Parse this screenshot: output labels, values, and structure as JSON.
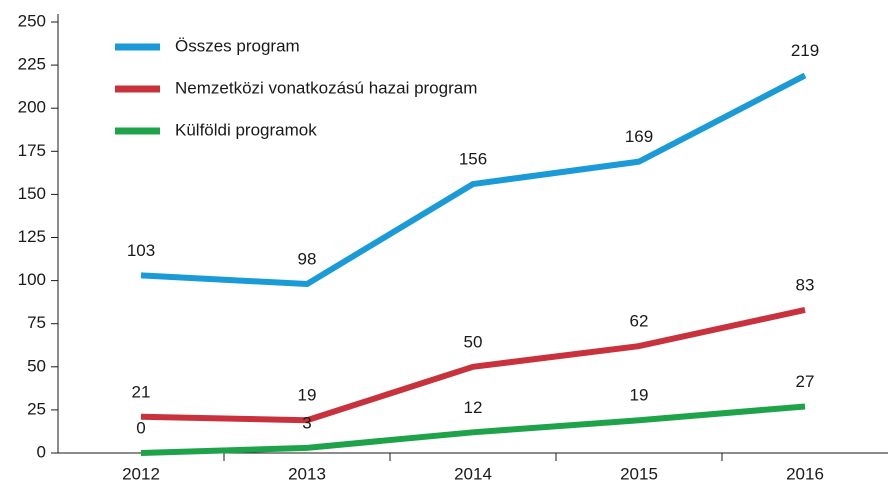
{
  "chart_data": {
    "type": "line",
    "categories": [
      "2012",
      "2013",
      "2014",
      "2015",
      "2016"
    ],
    "series": [
      {
        "name": "Összes program",
        "color": "#1a9ad6",
        "values": [
          103,
          98,
          156,
          169,
          219
        ]
      },
      {
        "name": "Nemzetközi vonatkozású hazai program",
        "color": "#c8323c",
        "values": [
          21,
          19,
          50,
          62,
          83
        ]
      },
      {
        "name": "Külföldi programok",
        "color": "#1fa34a",
        "values": [
          0,
          3,
          12,
          19,
          27
        ]
      }
    ],
    "ylim": [
      0,
      250
    ],
    "yticks": [
      0,
      25,
      50,
      75,
      100,
      125,
      150,
      175,
      200,
      225,
      250
    ],
    "legend": "upper left",
    "data_labels": true
  }
}
